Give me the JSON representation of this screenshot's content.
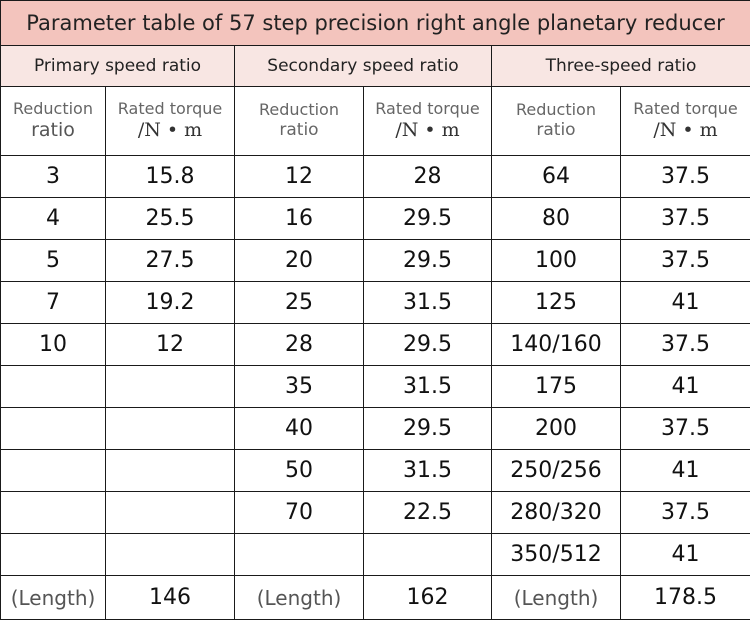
{
  "title": "Parameter table of 57 step precision right angle planetary reducer",
  "groups": [
    {
      "label": "Primary speed ratio",
      "col1_line1": "Reduction",
      "col1_line2": "ratio",
      "col2_line1": "Rated torque",
      "col2_line2": "/N • m",
      "rows": [
        [
          "3",
          "15.8"
        ],
        [
          "4",
          "25.5"
        ],
        [
          "5",
          "27.5"
        ],
        [
          "7",
          "19.2"
        ],
        [
          "10",
          "12"
        ],
        [
          "",
          ""
        ],
        [
          "",
          ""
        ],
        [
          "",
          ""
        ],
        [
          "",
          ""
        ],
        [
          "",
          ""
        ]
      ],
      "length_label": "(Length)",
      "length_value": "146"
    },
    {
      "label": "Secondary speed ratio",
      "col1_line1": "Reduction",
      "col1_line2": "ratio",
      "col2_line1": "Rated torque",
      "col2_line2": "/N • m",
      "rows": [
        [
          "12",
          "28"
        ],
        [
          "16",
          "29.5"
        ],
        [
          "20",
          "29.5"
        ],
        [
          "25",
          "31.5"
        ],
        [
          "28",
          "29.5"
        ],
        [
          "35",
          "31.5"
        ],
        [
          "40",
          "29.5"
        ],
        [
          "50",
          "31.5"
        ],
        [
          "70",
          "22.5"
        ],
        [
          "",
          ""
        ]
      ],
      "length_label": "(Length)",
      "length_value": "162"
    },
    {
      "label": "Three-speed ratio",
      "col1_line1": "Reduction",
      "col1_line2": "ratio",
      "col2_line1": "Rated torque",
      "col2_line2": "/N • m",
      "rows": [
        [
          "64",
          "37.5"
        ],
        [
          "80",
          "37.5"
        ],
        [
          "100",
          "37.5"
        ],
        [
          "125",
          "41"
        ],
        [
          "140/160",
          "37.5"
        ],
        [
          "175",
          "41"
        ],
        [
          "200",
          "37.5"
        ],
        [
          "250/256",
          "41"
        ],
        [
          "280/320",
          "37.5"
        ],
        [
          "350/512",
          "41"
        ]
      ],
      "length_label": "(Length)",
      "length_value": "178.5"
    }
  ],
  "colors": {
    "title_bg": "#f3c4bd",
    "group_bg": "#f8e6e3",
    "border": "#1a1a1a"
  }
}
